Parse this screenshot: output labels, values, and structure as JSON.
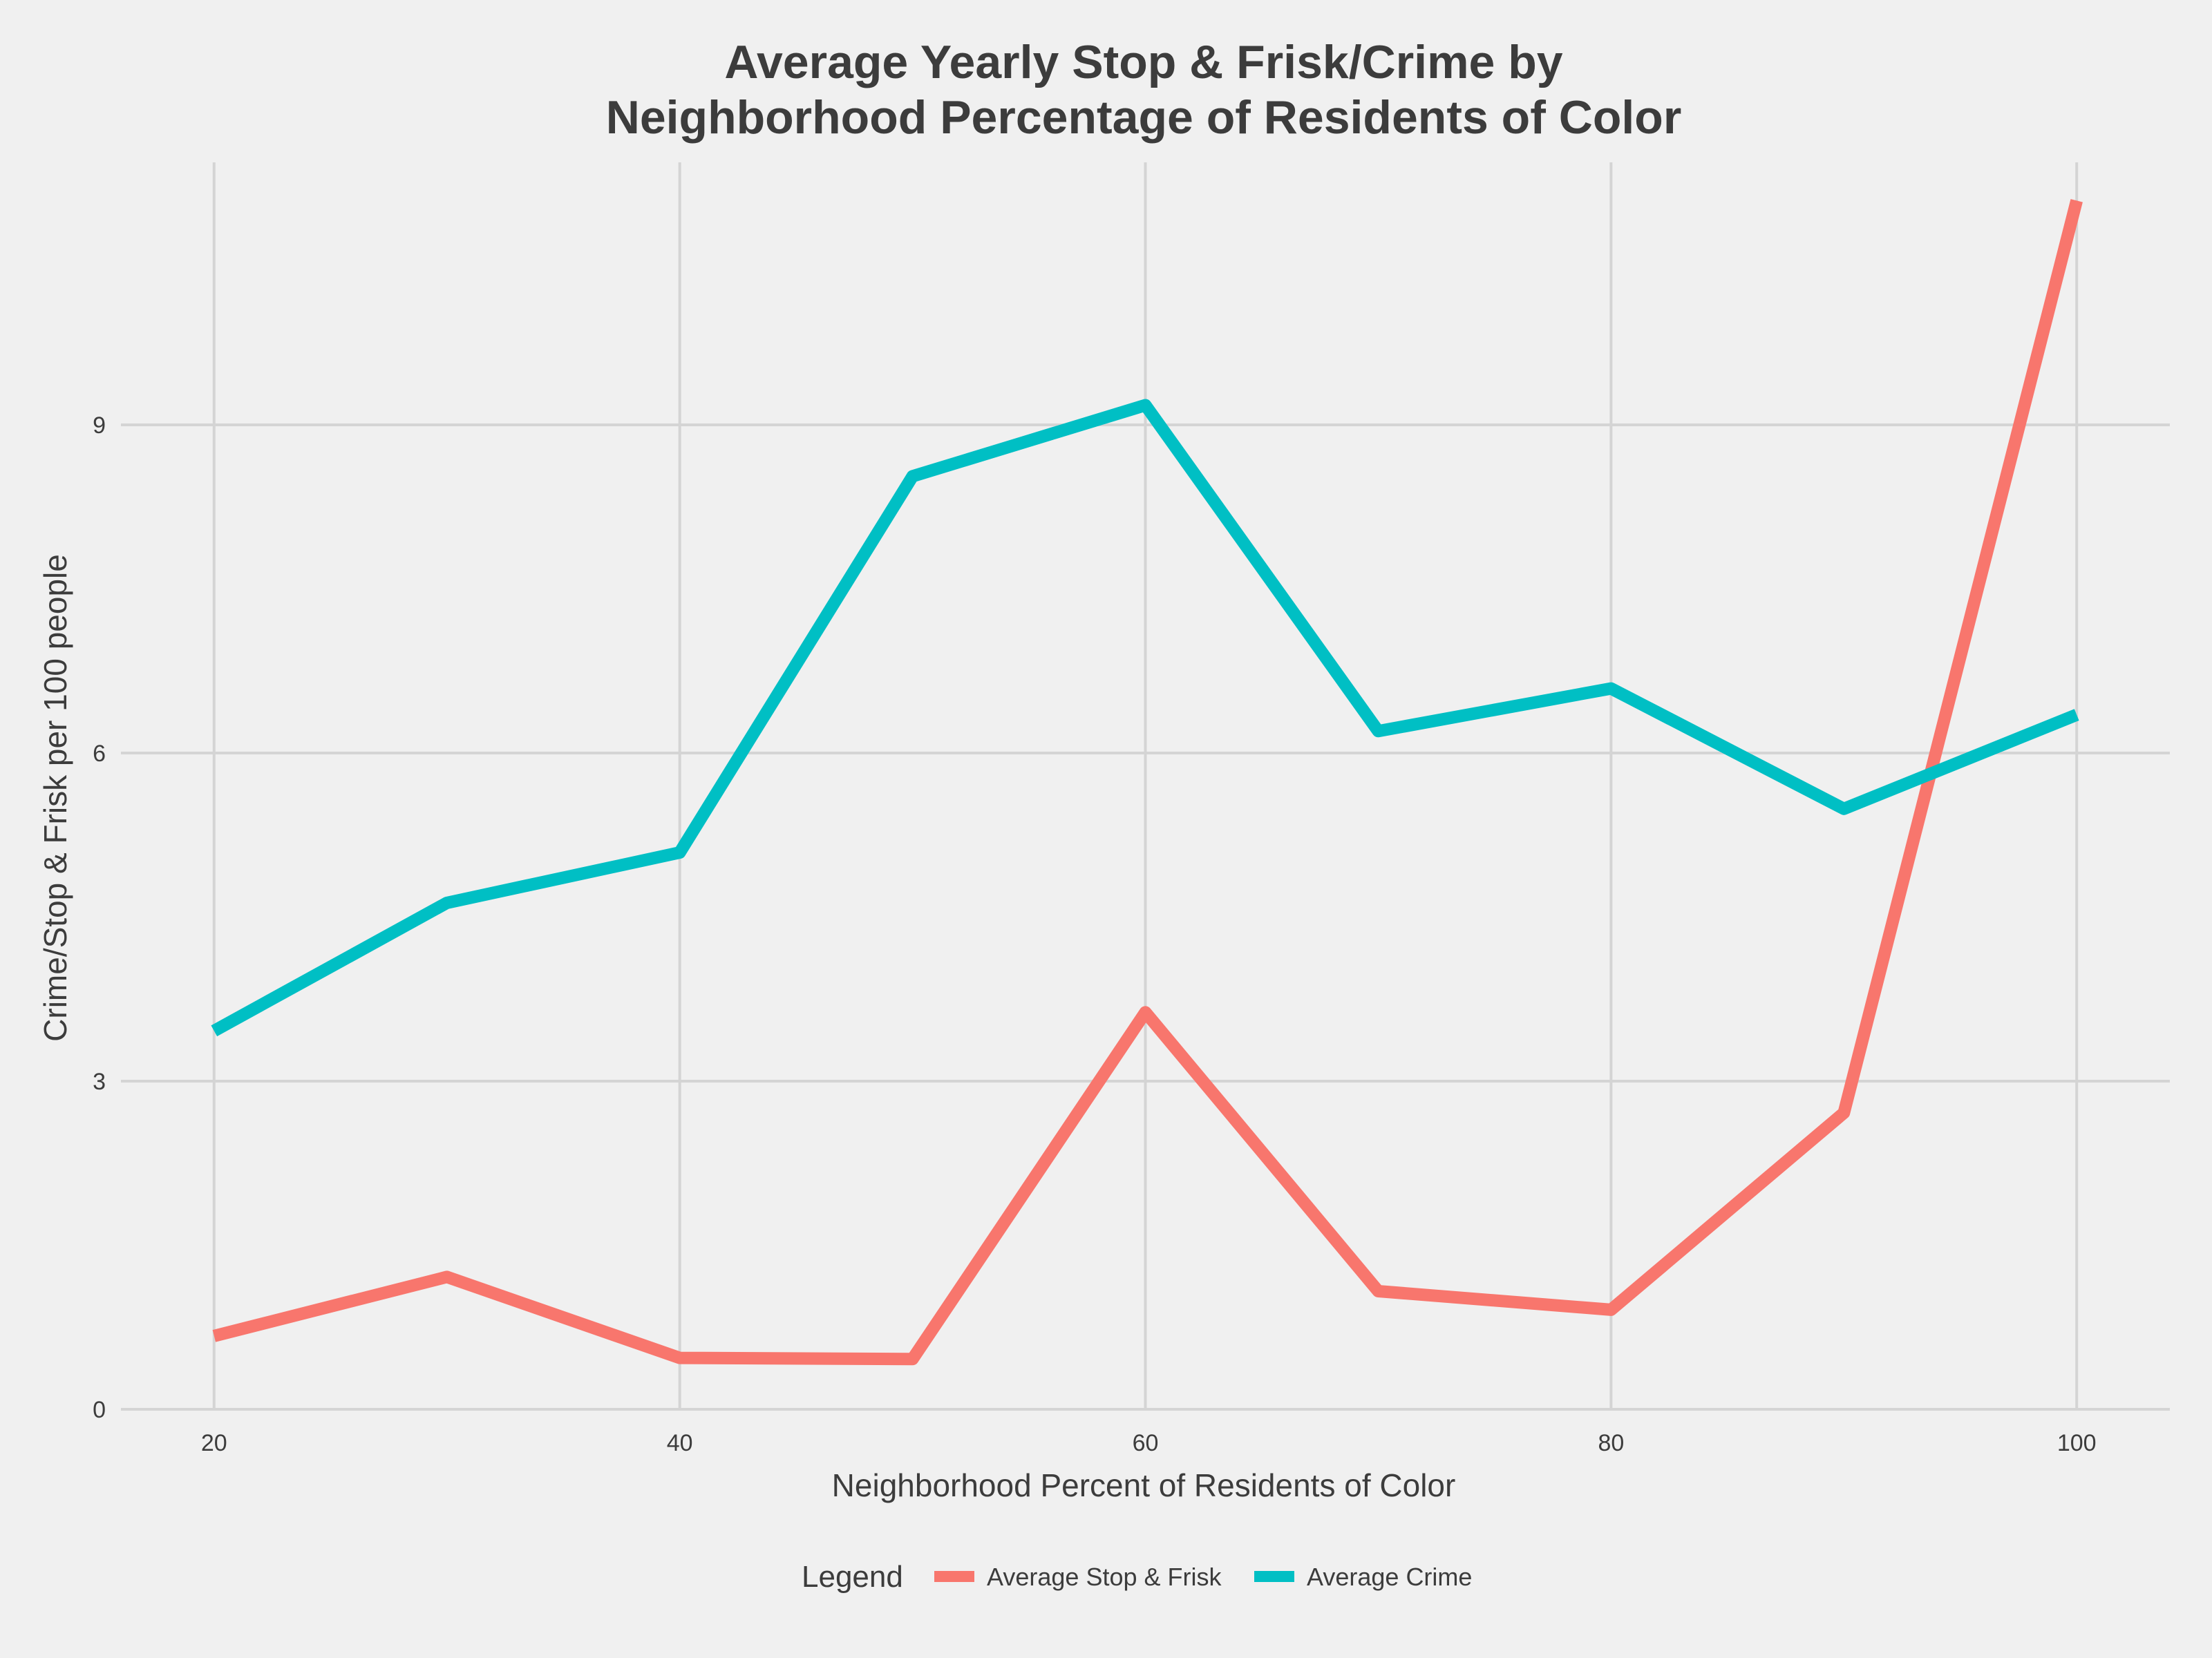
{
  "chart_data": {
    "type": "line",
    "title": "Average Yearly Stop & Frisk/Crime by",
    "subtitle": "Neighborhood Percentage of Residents of Color",
    "xlabel": "Neighborhood Percent of Residents of Color",
    "ylabel": "Crime/Stop & Frisk per 100 people",
    "xlim": [
      16,
      104
    ],
    "ylim": [
      0,
      11.4
    ],
    "x_ticks": [
      20,
      40,
      60,
      80,
      100
    ],
    "y_ticks": [
      0,
      3,
      6,
      9
    ],
    "x_tick_labels": [
      "20",
      "40",
      "60",
      "80",
      "100"
    ],
    "y_tick_labels": [
      "0",
      "3",
      "6",
      "9"
    ],
    "x": [
      20,
      30,
      40,
      50,
      60,
      70,
      80,
      90,
      100
    ],
    "grid": true,
    "legend_placement": "bottom",
    "legend_title": "Legend",
    "series": [
      {
        "name": "Average Stop & Frisk",
        "color": "#f8766d",
        "values": [
          0.67,
          1.21,
          0.47,
          0.46,
          3.63,
          1.08,
          0.91,
          2.71,
          11.05
        ]
      },
      {
        "name": "Average Crime",
        "color": "#00bfc4",
        "values": [
          3.46,
          4.63,
          5.09,
          8.53,
          9.18,
          6.2,
          6.59,
          5.49,
          6.35
        ]
      }
    ]
  }
}
